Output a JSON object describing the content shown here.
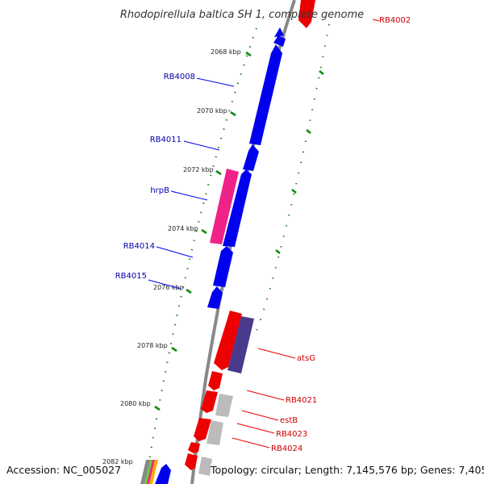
{
  "title": "Rhodopirellula baltica SH 1, complete genome",
  "footer": {
    "accession": "Accession: NC_005027",
    "summary": "Topology: circular; Length: 7,145,576 bp; Genes: 7,405"
  },
  "colors": {
    "reverse_gene": "#0000ee",
    "forward_gene": "#ee0000",
    "pink_gene": "#ee2288",
    "purple_gene": "#4a3a8c",
    "gray_gene": "#bbbbbb",
    "backbone": "#888888",
    "dots": "#118811",
    "reverse_label": "#0000aa",
    "forward_label": "#cc0000"
  },
  "scale_labels": [
    "2068 kbp",
    "2070 kbp",
    "2072 kbp",
    "2074 kbp",
    "2076 kbp",
    "2078 kbp",
    "2080 kbp",
    "2082 kbp"
  ],
  "gene_labels": {
    "reverse": [
      "RB4008",
      "RB4011",
      "hrpB",
      "RB4014",
      "RB4015"
    ],
    "forward": [
      "RB4002",
      "atsG",
      "RB4021",
      "estB",
      "RB4023",
      "RB4024"
    ]
  }
}
